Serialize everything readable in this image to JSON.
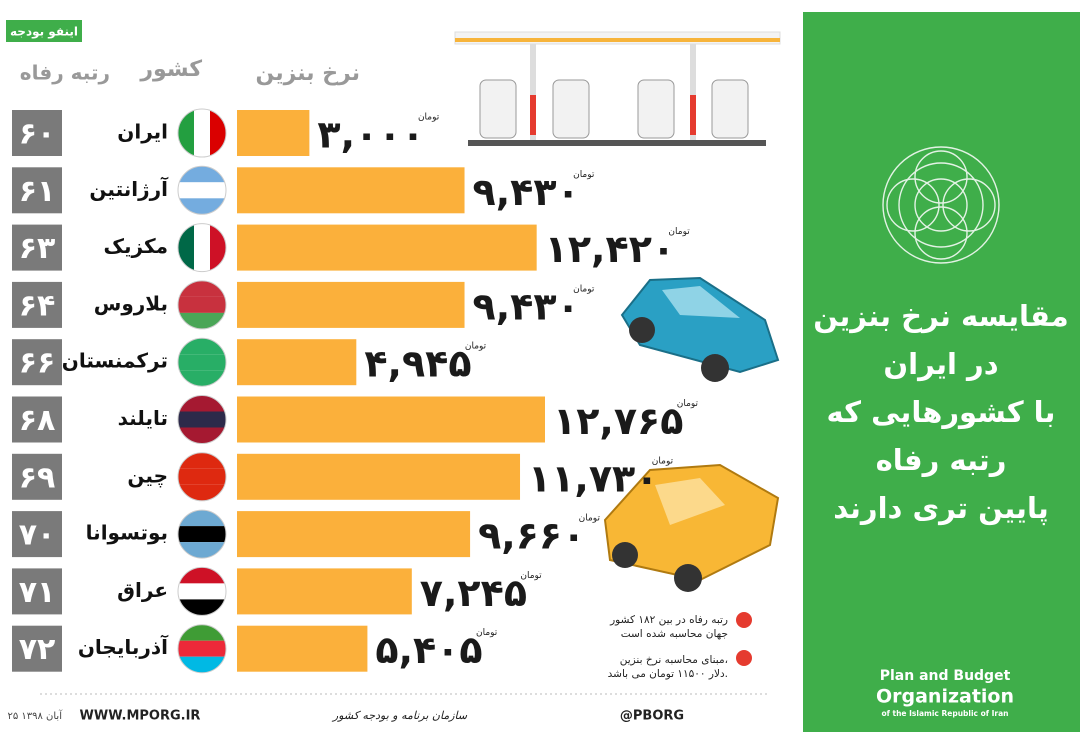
{
  "chart_data": {
    "type": "bar",
    "header_logo": "اینفو بودجه",
    "column_headers": {
      "price": "نرخ بنزین",
      "country": "کشور",
      "rank": "رتبه رفاه"
    },
    "categories": [
      "ایران",
      "آرژانتین",
      "مکزیک",
      "بلاروس",
      "ترکمنستان",
      "تایلند",
      "چین",
      "بوتسوانا",
      "عراق",
      "آذربایجان"
    ],
    "ranks": [
      "۶۰",
      "۶۱",
      "۶۳",
      "۶۴",
      "۶۶",
      "۶۸",
      "۶۹",
      "۷۰",
      "۷۱",
      "۷۲"
    ],
    "values": [
      3000,
      9430,
      12420,
      9430,
      4945,
      12765,
      11730,
      9660,
      7245,
      5405
    ],
    "value_labels": [
      "۳,۰۰۰",
      "۹,۴۳۰",
      "۱۲,۴۲۰",
      "۹,۴۳۰",
      "۴,۹۴۵",
      "۱۲,۷۶۵",
      "۱۱,۷۳۰",
      "۹,۶۶۰",
      "۷,۲۴۵",
      "۵,۴۰۵"
    ],
    "unit": "تومان",
    "color": "#fbb03b",
    "notes": [
      "رتبه رفاه در بین ۱۸۲ کشور",
      "جهان محاسبه شده است",
      "مبنای محاسبه نرخ بنزین،",
      "دلار ۱۱۵۰۰ تومان می باشد."
    ],
    "title_lines": [
      "مقایسه نرخ بنزین",
      "در ایران",
      "با کشورهایی که",
      "رتبه رفاه",
      "پایین تری دارند"
    ],
    "organization": [
      "Plan and Budget",
      "Organization",
      "of the Islamic Republic of Iran"
    ],
    "footer": {
      "date": "۲۵ آبان ۱۳۹۸",
      "website": "WWW.MPORG.IR",
      "org_name": "سازمان برنامه و بودجه کشور",
      "social": "@PBORG"
    }
  }
}
